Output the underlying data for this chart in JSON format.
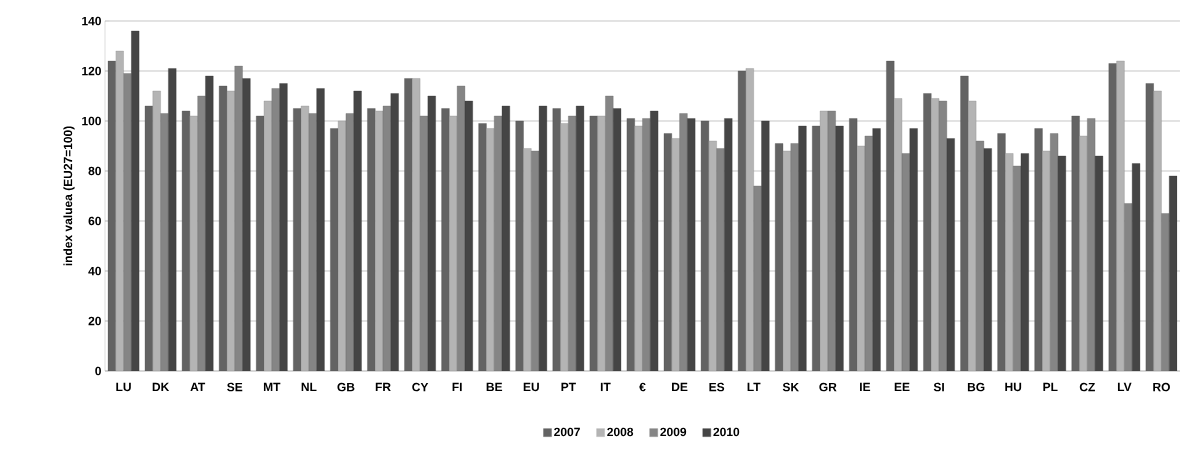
{
  "chart_data": {
    "type": "bar",
    "ylabel": "index valuea (EU27=100)",
    "categories": [
      "LU",
      "DK",
      "AT",
      "SE",
      "MT",
      "NL",
      "GB",
      "FR",
      "CY",
      "FI",
      "BE",
      "EU",
      "PT",
      "IT",
      "€",
      "DE",
      "ES",
      "LT",
      "SK",
      "GR",
      "IE",
      "EE",
      "SI",
      "BG",
      "HU",
      "PL",
      "CZ",
      "LV",
      "RO"
    ],
    "series": [
      {
        "name": "2007",
        "color": "#636363",
        "values": [
          124,
          106,
          104,
          114,
          102,
          105,
          97,
          105,
          117,
          105,
          99,
          100,
          105,
          102,
          101,
          95,
          100,
          120,
          91,
          98,
          101,
          124,
          111,
          118,
          95,
          97,
          102,
          123,
          115
        ]
      },
      {
        "name": "2008",
        "color": "#b4b4b4",
        "values": [
          128,
          112,
          102,
          112,
          108,
          106,
          100,
          104,
          117,
          102,
          97,
          89,
          99,
          102,
          98,
          93,
          92,
          121,
          88,
          104,
          90,
          109,
          109,
          108,
          87,
          88,
          94,
          124,
          112
        ]
      },
      {
        "name": "2009",
        "color": "#858585",
        "values": [
          119,
          103,
          110,
          122,
          113,
          103,
          103,
          106,
          102,
          114,
          102,
          88,
          102,
          110,
          101,
          103,
          89,
          74,
          91,
          104,
          94,
          87,
          108,
          92,
          82,
          95,
          101,
          67,
          63
        ]
      },
      {
        "name": "2010",
        "color": "#454545",
        "values": [
          136,
          121,
          118,
          117,
          115,
          113,
          112,
          111,
          110,
          108,
          106,
          106,
          106,
          105,
          104,
          101,
          101,
          100,
          98,
          98,
          97,
          97,
          93,
          89,
          87,
          86,
          86,
          83,
          78
        ]
      }
    ],
    "ylim": [
      0,
      140
    ],
    "yticks": [
      0,
      20,
      40,
      60,
      80,
      100,
      120,
      140
    ],
    "grid": "y",
    "legend": "bottom"
  }
}
